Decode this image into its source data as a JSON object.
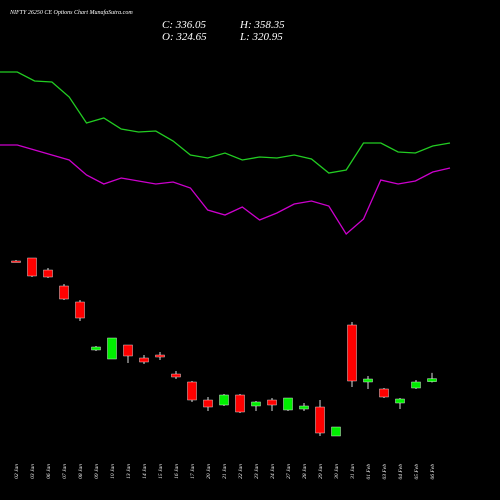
{
  "chart_data": {
    "type": "candlestick",
    "title": "NIFTY 26250 CE Options Chart MunafaSutra.com",
    "header": {
      "close": "C: 336.05",
      "high": "H: 358.35",
      "open": "O: 324.65",
      "low": "L: 320.95"
    },
    "categories": [
      "02 Jan",
      "03 Jan",
      "06 Jan",
      "07 Jan",
      "08 Jan",
      "09 Jan",
      "10 Jan",
      "13 Jan",
      "14 Jan",
      "15 Jan",
      "16 Jan",
      "17 Jan",
      "20 Jan",
      "21 Jan",
      "22 Jan",
      "23 Jan",
      "24 Jan",
      "27 Jan",
      "28 Jan",
      "29 Jan",
      "30 Jan",
      "31 Jan",
      "01 Feb",
      "03 Feb",
      "04 Feb",
      "05 Feb",
      "06 Feb"
    ],
    "open": [
      788.5,
      800,
      753.8,
      692.3,
      630.8,
      446.2,
      411.5,
      465.4,
      415.4,
      426.9,
      353.8,
      323.1,
      253.8,
      234.6,
      273.1,
      230.8,
      253.8,
      215.4,
      219.2,
      226.9,
      115.4,
      542.3,
      323.1,
      296.2,
      242.3,
      300,
      324.65
    ],
    "high": [
      792.3,
      800,
      761.5,
      700,
      638.5,
      461.5,
      492.3,
      465.4,
      426.9,
      438.5,
      365.4,
      326.9,
      265.4,
      276.9,
      276.9,
      250,
      261.5,
      261.5,
      242.3,
      253.8,
      150,
      553.8,
      346.2,
      300,
      261.5,
      330.8,
      358.35
    ],
    "low": [
      784.6,
      726.9,
      723,
      638.5,
      557.7,
      442.3,
      411.5,
      396.2,
      392.3,
      407.7,
      334.6,
      246.2,
      211.5,
      230.8,
      203.8,
      211.5,
      211.5,
      211.5,
      211.5,
      115.4,
      115.4,
      303.8,
      296.2,
      261.5,
      219.2,
      296.2,
      320.95
    ],
    "close": [
      784.6,
      730.8,
      726.9,
      642.3,
      569.2,
      457.7,
      492.3,
      423.1,
      400,
      419.2,
      342.3,
      253.8,
      226.9,
      273.1,
      207.7,
      246.2,
      234.6,
      261.5,
      230.8,
      126.9,
      150,
      326.9,
      334.6,
      265.4,
      257.7,
      323.1,
      336.05
    ],
    "up_color": "#00ee00",
    "down_color": "#ff0000",
    "ylim": [
      100,
      850
    ],
    "indicators": {
      "ylim": [
        0,
        200
      ],
      "series": [
        {
          "color": "#22cc22",
          "values": [
            188,
            188,
            179,
            178,
            163,
            137,
            142,
            131,
            128,
            129,
            119,
            105,
            102,
            107,
            100,
            103,
            102,
            105,
            101,
            87,
            90,
            117,
            117,
            108,
            107,
            114,
            117
          ]
        },
        {
          "color": "#cc00cc",
          "values": [
            115,
            115,
            110,
            105,
            100,
            85,
            76,
            82,
            79,
            76,
            78,
            72,
            50,
            45,
            53,
            40,
            47,
            56,
            59,
            54,
            26,
            41,
            80,
            76,
            79,
            88,
            92
          ]
        }
      ]
    }
  }
}
